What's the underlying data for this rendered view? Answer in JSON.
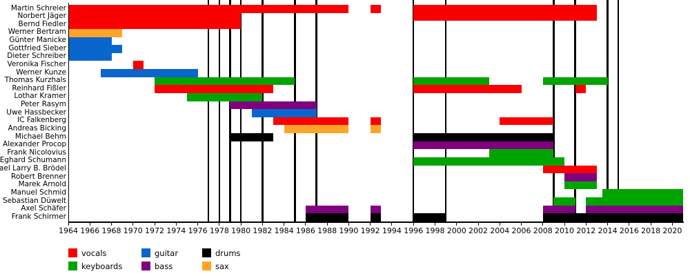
{
  "chart_data": {
    "type": "bar",
    "variant": "gantt-member-timeline",
    "title": "",
    "x_axis": {
      "min": 1964,
      "max": 2021,
      "tick_start": 1964,
      "tick_end": 2020,
      "tick_interval": 2
    },
    "grid": false,
    "legend_position": "bottom",
    "event_line_years": [
      1977,
      1978,
      1979,
      1980,
      1982,
      1985,
      1987,
      1996,
      1999,
      2009,
      2011,
      2014,
      2015
    ],
    "legend": [
      {
        "label": "vocals",
        "color": "#fa0000"
      },
      {
        "label": "keyboards",
        "color": "#00a400"
      },
      {
        "label": "guitar",
        "color": "#0a66cc"
      },
      {
        "label": "bass",
        "color": "#800080"
      },
      {
        "label": "drums",
        "color": "#000000"
      },
      {
        "label": "sax",
        "color": "#ffa428"
      }
    ],
    "members": [
      {
        "name": "Martin Schreier",
        "segments": [
          {
            "from": 1964,
            "to": 1990,
            "role": "vocals"
          },
          {
            "from": 1992,
            "to": 1993,
            "role": "vocals"
          },
          {
            "from": 1996,
            "to": 2013,
            "role": "vocals"
          }
        ]
      },
      {
        "name": "Norbert Jäger",
        "segments": [
          {
            "from": 1964,
            "to": 1980,
            "role": "vocals"
          },
          {
            "from": 1996,
            "to": 2013,
            "role": "vocals"
          }
        ]
      },
      {
        "name": "Bernd Fiedler",
        "segments": [
          {
            "from": 1964,
            "to": 1980,
            "role": "vocals"
          }
        ]
      },
      {
        "name": "Werner Bertram",
        "segments": [
          {
            "from": 1964,
            "to": 1969,
            "role": "sax"
          }
        ]
      },
      {
        "name": "Günter Manicke",
        "segments": [
          {
            "from": 1964,
            "to": 1968,
            "role": "guitar"
          }
        ]
      },
      {
        "name": "Gottfried Sieber",
        "segments": [
          {
            "from": 1964,
            "to": 1969,
            "role": "guitar"
          }
        ]
      },
      {
        "name": "Dieter Schreiber",
        "segments": [
          {
            "from": 1964,
            "to": 1968,
            "role": "guitar"
          }
        ]
      },
      {
        "name": "Veronika Fischer",
        "segments": [
          {
            "from": 1970,
            "to": 1971,
            "role": "vocals"
          }
        ]
      },
      {
        "name": "Werner Kunze",
        "segments": [
          {
            "from": 1967,
            "to": 1976,
            "role": "guitar"
          }
        ]
      },
      {
        "name": "Thomas Kurzhals",
        "segments": [
          {
            "from": 1972,
            "to": 1985,
            "role": "keyboards"
          },
          {
            "from": 1996,
            "to": 2003,
            "role": "keyboards"
          },
          {
            "from": 2008,
            "to": 2014,
            "role": "keyboards"
          }
        ]
      },
      {
        "name": "Reinhard Fißler",
        "segments": [
          {
            "from": 1972,
            "to": 1983,
            "role": "vocals"
          },
          {
            "from": 1996,
            "to": 2006,
            "role": "vocals"
          },
          {
            "from": 2011,
            "to": 2012,
            "role": "vocals"
          }
        ]
      },
      {
        "name": "Lothar Kramer",
        "segments": [
          {
            "from": 1975,
            "to": 1982,
            "role": "keyboards"
          }
        ]
      },
      {
        "name": "Peter Rasym",
        "segments": [
          {
            "from": 1979,
            "to": 1987,
            "role": "bass"
          }
        ]
      },
      {
        "name": "Uwe Hassbecker",
        "segments": [
          {
            "from": 1981,
            "to": 1987,
            "role": "guitar"
          }
        ]
      },
      {
        "name": "IC Falkenberg",
        "segments": [
          {
            "from": 1983,
            "to": 1990,
            "role": "vocals"
          },
          {
            "from": 1992,
            "to": 1993,
            "role": "vocals"
          },
          {
            "from": 2004,
            "to": 2009,
            "role": "vocals"
          }
        ]
      },
      {
        "name": "Andreas Bicking",
        "segments": [
          {
            "from": 1984,
            "to": 1990,
            "role": "sax"
          },
          {
            "from": 1992,
            "to": 1993,
            "role": "sax"
          }
        ]
      },
      {
        "name": "Michael Behm",
        "segments": [
          {
            "from": 1979,
            "to": 1983,
            "role": "drums"
          },
          {
            "from": 1996,
            "to": 2009,
            "role": "drums"
          }
        ]
      },
      {
        "name": "Alexander Procop",
        "segments": [
          {
            "from": 1996,
            "to": 2009,
            "role": "bass"
          }
        ]
      },
      {
        "name": "Frank Nicolovius",
        "segments": [
          {
            "from": 2003,
            "to": 2009,
            "role": "keyboards"
          }
        ]
      },
      {
        "name": "Eghard Schumann",
        "segments": [
          {
            "from": 1996,
            "to": 2010,
            "role": "keyboards"
          }
        ]
      },
      {
        "name": "Michael Larry B. Brödel",
        "segments": [
          {
            "from": 2008,
            "to": 2013,
            "role": "vocals"
          }
        ]
      },
      {
        "name": "Robert Brenner",
        "segments": [
          {
            "from": 2010,
            "to": 2013,
            "role": "bass"
          }
        ]
      },
      {
        "name": "Marek Arnold",
        "segments": [
          {
            "from": 2010,
            "to": 2013,
            "role": "keyboards"
          }
        ]
      },
      {
        "name": "Manuel Schmid",
        "segments": [
          {
            "from": 2013.5,
            "to": 2021,
            "role": "keyboards"
          }
        ]
      },
      {
        "name": "Sebastian Düwelt",
        "segments": [
          {
            "from": 2009,
            "to": 2011,
            "role": "keyboards"
          },
          {
            "from": 2012,
            "to": 2021,
            "role": "keyboards"
          }
        ]
      },
      {
        "name": "Axel Schäfer",
        "segments": [
          {
            "from": 1986,
            "to": 1990,
            "role": "bass"
          },
          {
            "from": 1992,
            "to": 1993,
            "role": "bass"
          },
          {
            "from": 2008,
            "to": 2011,
            "role": "bass"
          },
          {
            "from": 2012,
            "to": 2021,
            "role": "bass"
          }
        ]
      },
      {
        "name": "Frank Schirmer",
        "segments": [
          {
            "from": 1986,
            "to": 1990,
            "role": "drums"
          },
          {
            "from": 1992,
            "to": 1993,
            "role": "drums"
          },
          {
            "from": 1996,
            "to": 1999,
            "role": "drums"
          },
          {
            "from": 2008,
            "to": 2021,
            "role": "drums"
          }
        ]
      }
    ]
  }
}
